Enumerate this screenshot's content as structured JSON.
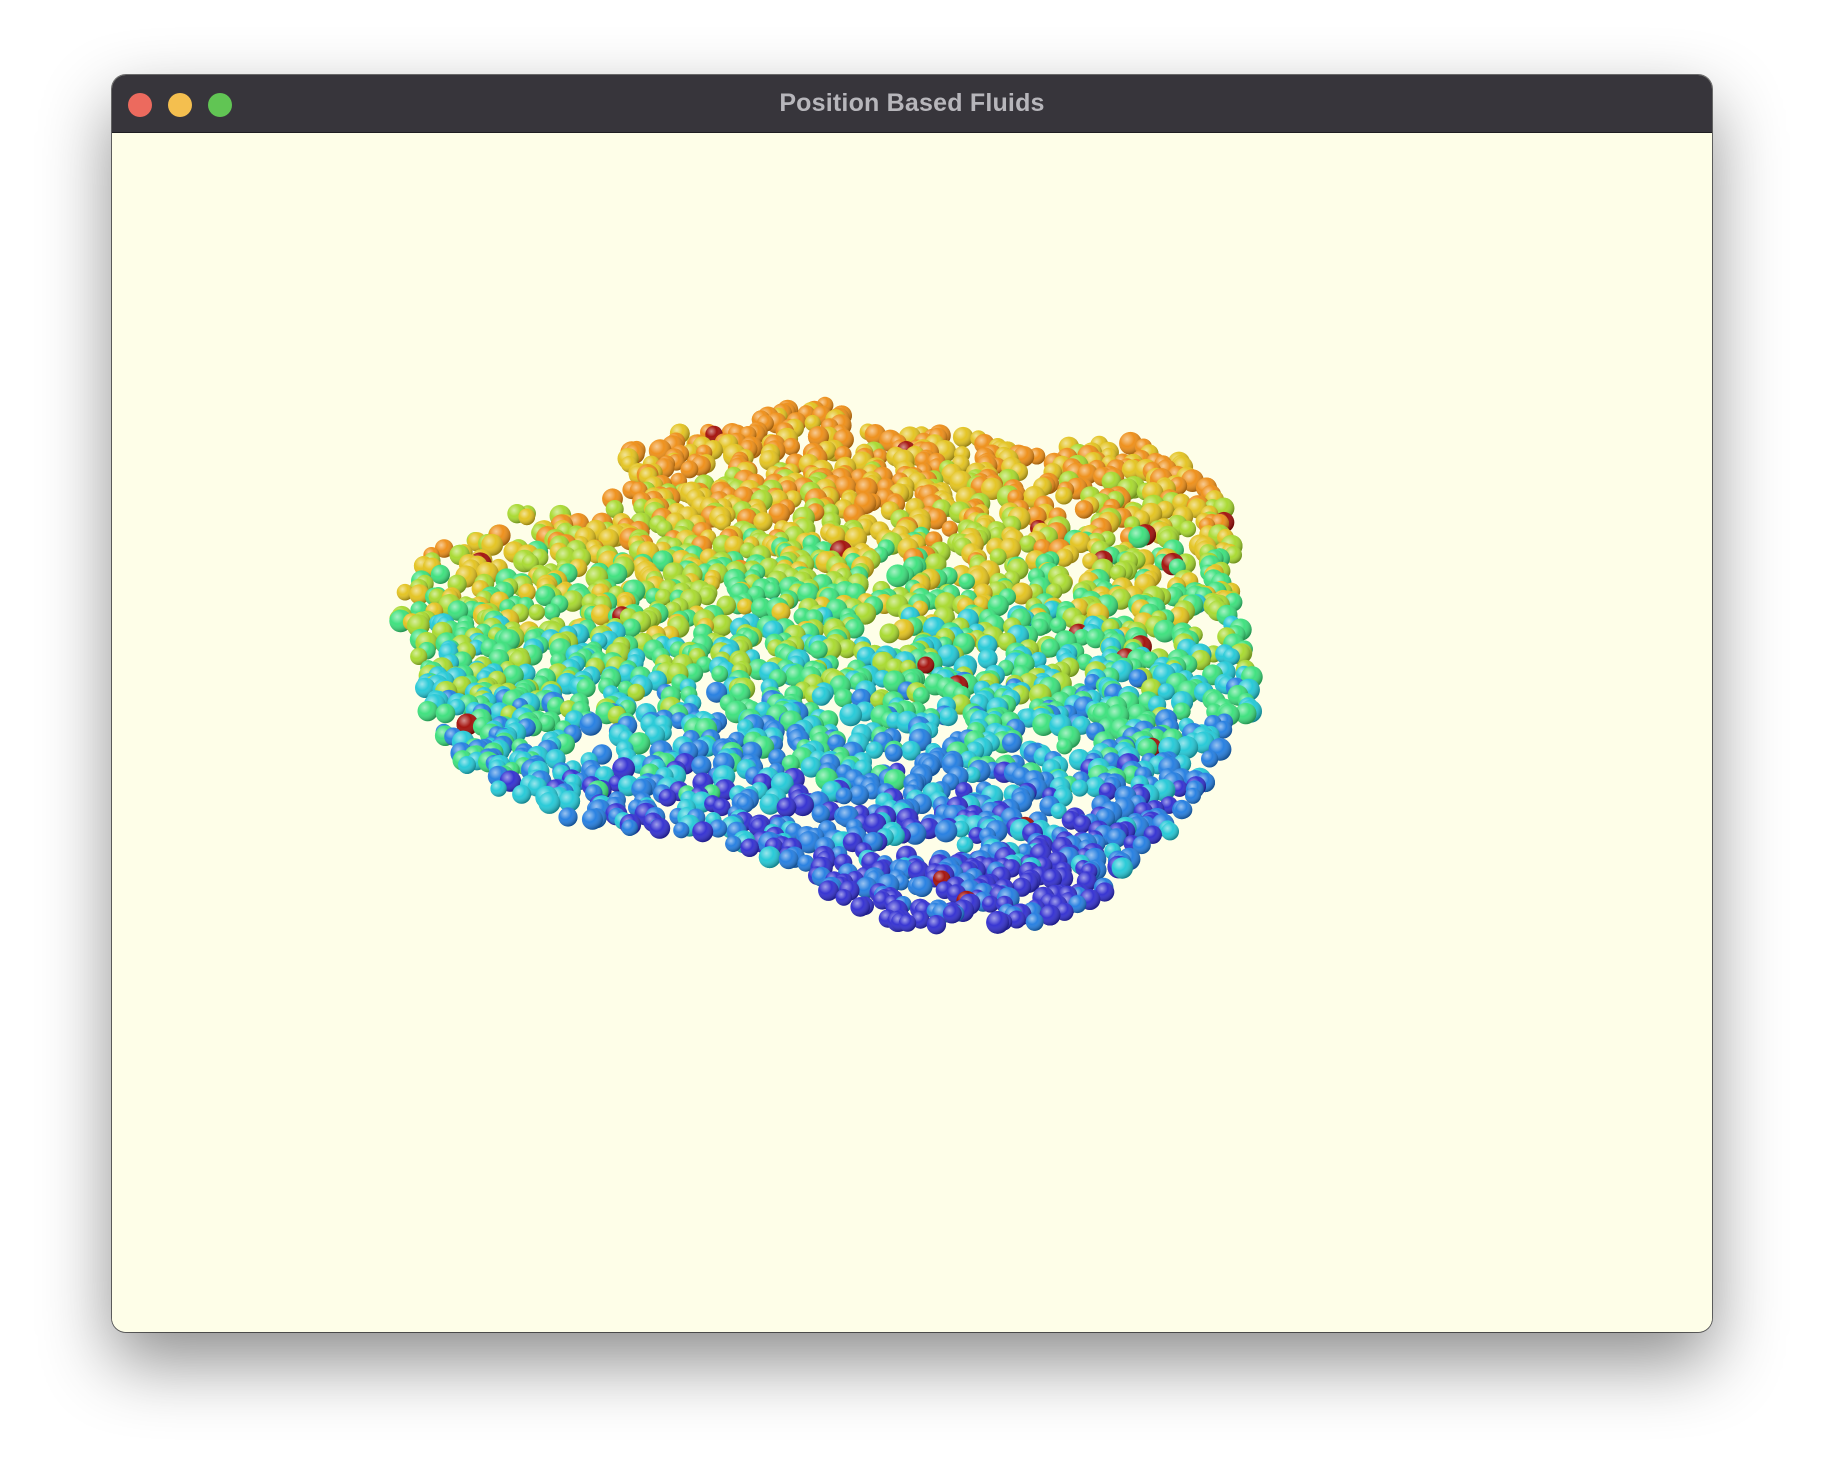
{
  "window": {
    "title": "Position Based Fluids",
    "controls": [
      "close",
      "minimize",
      "zoom"
    ]
  },
  "colors": {
    "background": "#fefee8",
    "titlebar": "#37353b",
    "title_text": "#b7b6bb",
    "close": "#ec6a5e",
    "minimize": "#f4bf4f",
    "zoom": "#61c554"
  },
  "scene": {
    "description_free": true,
    "colormap": [
      "#2e2bd0",
      "#1f7be0",
      "#1fc8d6",
      "#38e07a",
      "#a6d92a",
      "#e3c21a",
      "#ee8c12",
      "#e0550d",
      "#a10a04"
    ]
  }
}
